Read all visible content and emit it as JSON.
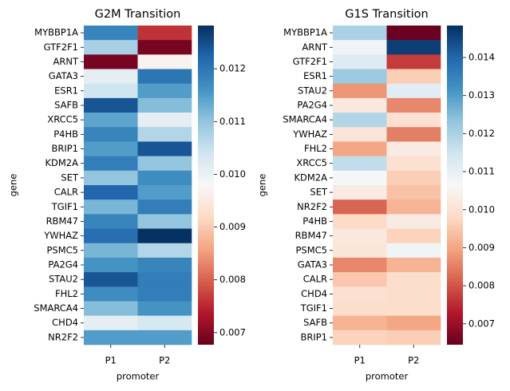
{
  "chart_data": [
    {
      "type": "heatmap",
      "title": "G2M Transition",
      "x_label": "promoter",
      "y_label": "gene",
      "colormap": "RdBu",
      "x": [
        "P1",
        "P2"
      ],
      "y": [
        "MYBBP1A",
        "GTF2F1",
        "ARNT",
        "GATA3",
        "ESR1",
        "SAFB",
        "XRCC5",
        "P4HB",
        "BRIP1",
        "KDM2A",
        "SET",
        "CALR",
        "TGIF1",
        "RBM47",
        "YWHAZ",
        "PSMC5",
        "PA2G4",
        "STAU2",
        "FHL2",
        "SMARCA4",
        "CHD4",
        "NR2F2"
      ],
      "values": [
        [
          0.0118,
          0.0076
        ],
        [
          0.0108,
          0.0069
        ],
        [
          0.0069,
          0.0097
        ],
        [
          0.0101,
          0.012
        ],
        [
          0.0104,
          0.0115
        ],
        [
          0.0124,
          0.0111
        ],
        [
          0.0114,
          0.0101
        ],
        [
          0.0118,
          0.0107
        ],
        [
          0.0115,
          0.0124
        ],
        [
          0.0119,
          0.011
        ],
        [
          0.011,
          0.0117
        ],
        [
          0.0122,
          0.0115
        ],
        [
          0.0112,
          0.0119
        ],
        [
          0.0118,
          0.011
        ],
        [
          0.0121,
          0.0128
        ],
        [
          0.0112,
          0.0107
        ],
        [
          0.0116,
          0.0118
        ],
        [
          0.0124,
          0.0119
        ],
        [
          0.0117,
          0.0119
        ],
        [
          0.0111,
          0.0116
        ],
        [
          0.0101,
          0.0103
        ],
        [
          0.0115,
          0.0115
        ]
      ],
      "clim": [
        0.00677,
        0.01282
      ],
      "cticks": [
        0.007,
        0.008,
        0.009,
        {
          "value": 0.01,
          "label": "0.010"
        },
        0.011,
        0.012
      ]
    },
    {
      "type": "heatmap",
      "title": "G1S Transition",
      "x_label": "promoter",
      "y_label": "gene",
      "colormap": "RdBu",
      "x": [
        "P1",
        "P2"
      ],
      "y": [
        "MYBBP1A",
        "ARNT",
        "GTF2F1",
        "ESR1",
        "STAU2",
        "PA2G4",
        "SMARCA4",
        "YWHAZ",
        "FHL2",
        "XRCC5",
        "KDM2A",
        "SET",
        "NR2F2",
        "P4HB",
        "RBM47",
        "PSMC5",
        "GATA3",
        "CALR",
        "CHD4",
        "TGIF1",
        "SAFB",
        "BRIP1"
      ],
      "values": [
        [
          0.012,
          0.0065
        ],
        [
          0.0108,
          0.0146
        ],
        [
          0.0112,
          0.0077
        ],
        [
          0.0122,
          0.0096
        ],
        [
          0.0088,
          0.0111
        ],
        [
          0.0102,
          0.0086
        ],
        [
          0.0119,
          0.01
        ],
        [
          0.0101,
          0.0085
        ],
        [
          0.009,
          0.0103
        ],
        [
          0.0117,
          0.01
        ],
        [
          0.0107,
          0.0096
        ],
        [
          0.0103,
          0.0094
        ],
        [
          0.0082,
          0.0092
        ],
        [
          0.0098,
          0.0103
        ],
        [
          0.0102,
          0.0097
        ],
        [
          0.0101,
          0.0108
        ],
        [
          0.0086,
          0.0092
        ],
        [
          0.0095,
          0.0099
        ],
        [
          0.01,
          0.0099
        ],
        [
          0.0099,
          0.0099
        ],
        [
          0.0092,
          0.009
        ],
        [
          0.0097,
          0.0096
        ]
      ],
      "clim": [
        0.00645,
        0.01484
      ],
      "cticks": [
        0.007,
        0.008,
        0.009,
        {
          "value": 0.01,
          "label": "0.010"
        },
        0.011,
        0.012,
        0.013,
        0.014
      ]
    }
  ]
}
